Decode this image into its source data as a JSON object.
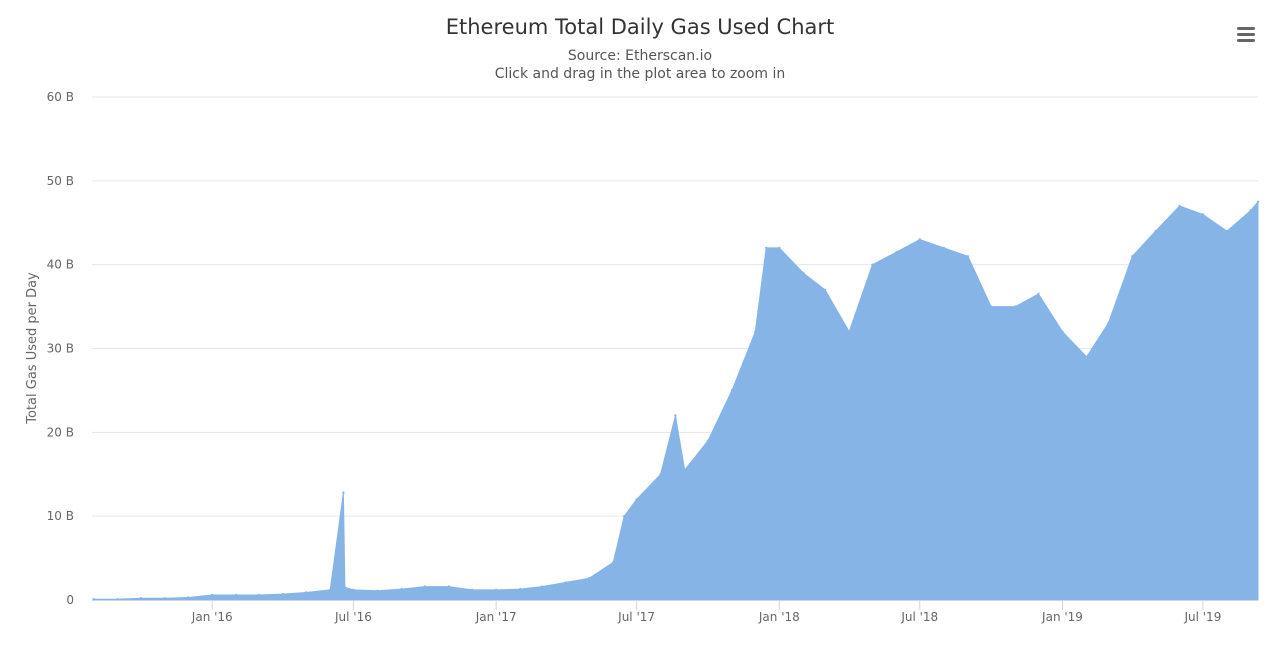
{
  "chart_data": {
    "type": "area",
    "title": "Ethereum Total Daily Gas Used Chart",
    "subtitle": "Source: Etherscan.io",
    "subtitle2": "Click and drag in the plot area to zoom in",
    "xlabel": "",
    "ylabel": "Total Gas Used per Day",
    "x_range": [
      "2015-07-30",
      "2019-09-10"
    ],
    "ylim": [
      0,
      60
    ],
    "y_unit": "B",
    "y_ticks": [
      0,
      10,
      20,
      30,
      40,
      50,
      60
    ],
    "y_tick_labels": [
      "0",
      "10 B",
      "20 B",
      "30 B",
      "40 B",
      "50 B",
      "60 B"
    ],
    "x_ticks": [
      "2016-01-01",
      "2016-07-01",
      "2017-01-01",
      "2017-07-01",
      "2018-01-01",
      "2018-07-01",
      "2019-01-01",
      "2019-07-01"
    ],
    "x_tick_labels": [
      "Jan '16",
      "Jul '16",
      "Jan '17",
      "Jul '17",
      "Jan '18",
      "Jul '18",
      "Jan '19",
      "Jul '19"
    ],
    "grid": true,
    "legend": "none",
    "color": "#87b4e7",
    "series": [
      {
        "x": [
          "2015-08-01",
          "2015-09-01",
          "2015-10-01",
          "2015-11-01",
          "2015-12-01",
          "2016-01-01",
          "2016-02-01",
          "2016-03-01",
          "2016-04-01",
          "2016-05-01",
          "2016-06-01",
          "2016-06-18",
          "2016-06-20",
          "2016-07-01",
          "2016-08-01",
          "2016-09-01",
          "2016-10-01",
          "2016-11-01",
          "2016-12-01",
          "2017-01-01",
          "2017-02-01",
          "2017-03-01",
          "2017-04-01",
          "2017-05-01",
          "2017-06-01",
          "2017-06-15",
          "2017-07-01",
          "2017-08-01",
          "2017-08-20",
          "2017-09-01",
          "2017-10-01",
          "2017-11-01",
          "2017-12-01",
          "2017-12-15",
          "2018-01-01",
          "2018-02-01",
          "2018-03-01",
          "2018-04-01",
          "2018-05-01",
          "2018-06-01",
          "2018-07-01",
          "2018-08-01",
          "2018-09-01",
          "2018-10-01",
          "2018-11-01",
          "2018-12-01",
          "2019-01-01",
          "2019-02-01",
          "2019-03-01",
          "2019-04-01",
          "2019-05-01",
          "2019-06-01",
          "2019-07-01",
          "2019-08-01",
          "2019-09-01",
          "2019-09-10"
        ],
        "values": [
          0.1,
          0.1,
          0.2,
          0.2,
          0.3,
          0.6,
          0.6,
          0.6,
          0.7,
          0.9,
          1.2,
          12.8,
          1.5,
          1.2,
          1.1,
          1.3,
          1.6,
          1.6,
          1.2,
          1.2,
          1.3,
          1.6,
          2.1,
          2.6,
          4.5,
          10.0,
          12.0,
          15.0,
          22.0,
          15.5,
          19.0,
          25.0,
          32.0,
          42.0,
          42.0,
          39.0,
          37.0,
          32.0,
          40.0,
          41.5,
          43.0,
          42.0,
          41.0,
          35.0,
          35.0,
          36.5,
          32.0,
          29.0,
          33.0,
          41.0,
          44.0,
          47.0,
          46.0,
          44.0,
          46.5,
          47.5
        ]
      }
    ]
  },
  "menu": {
    "icon": "hamburger-menu-icon"
  }
}
